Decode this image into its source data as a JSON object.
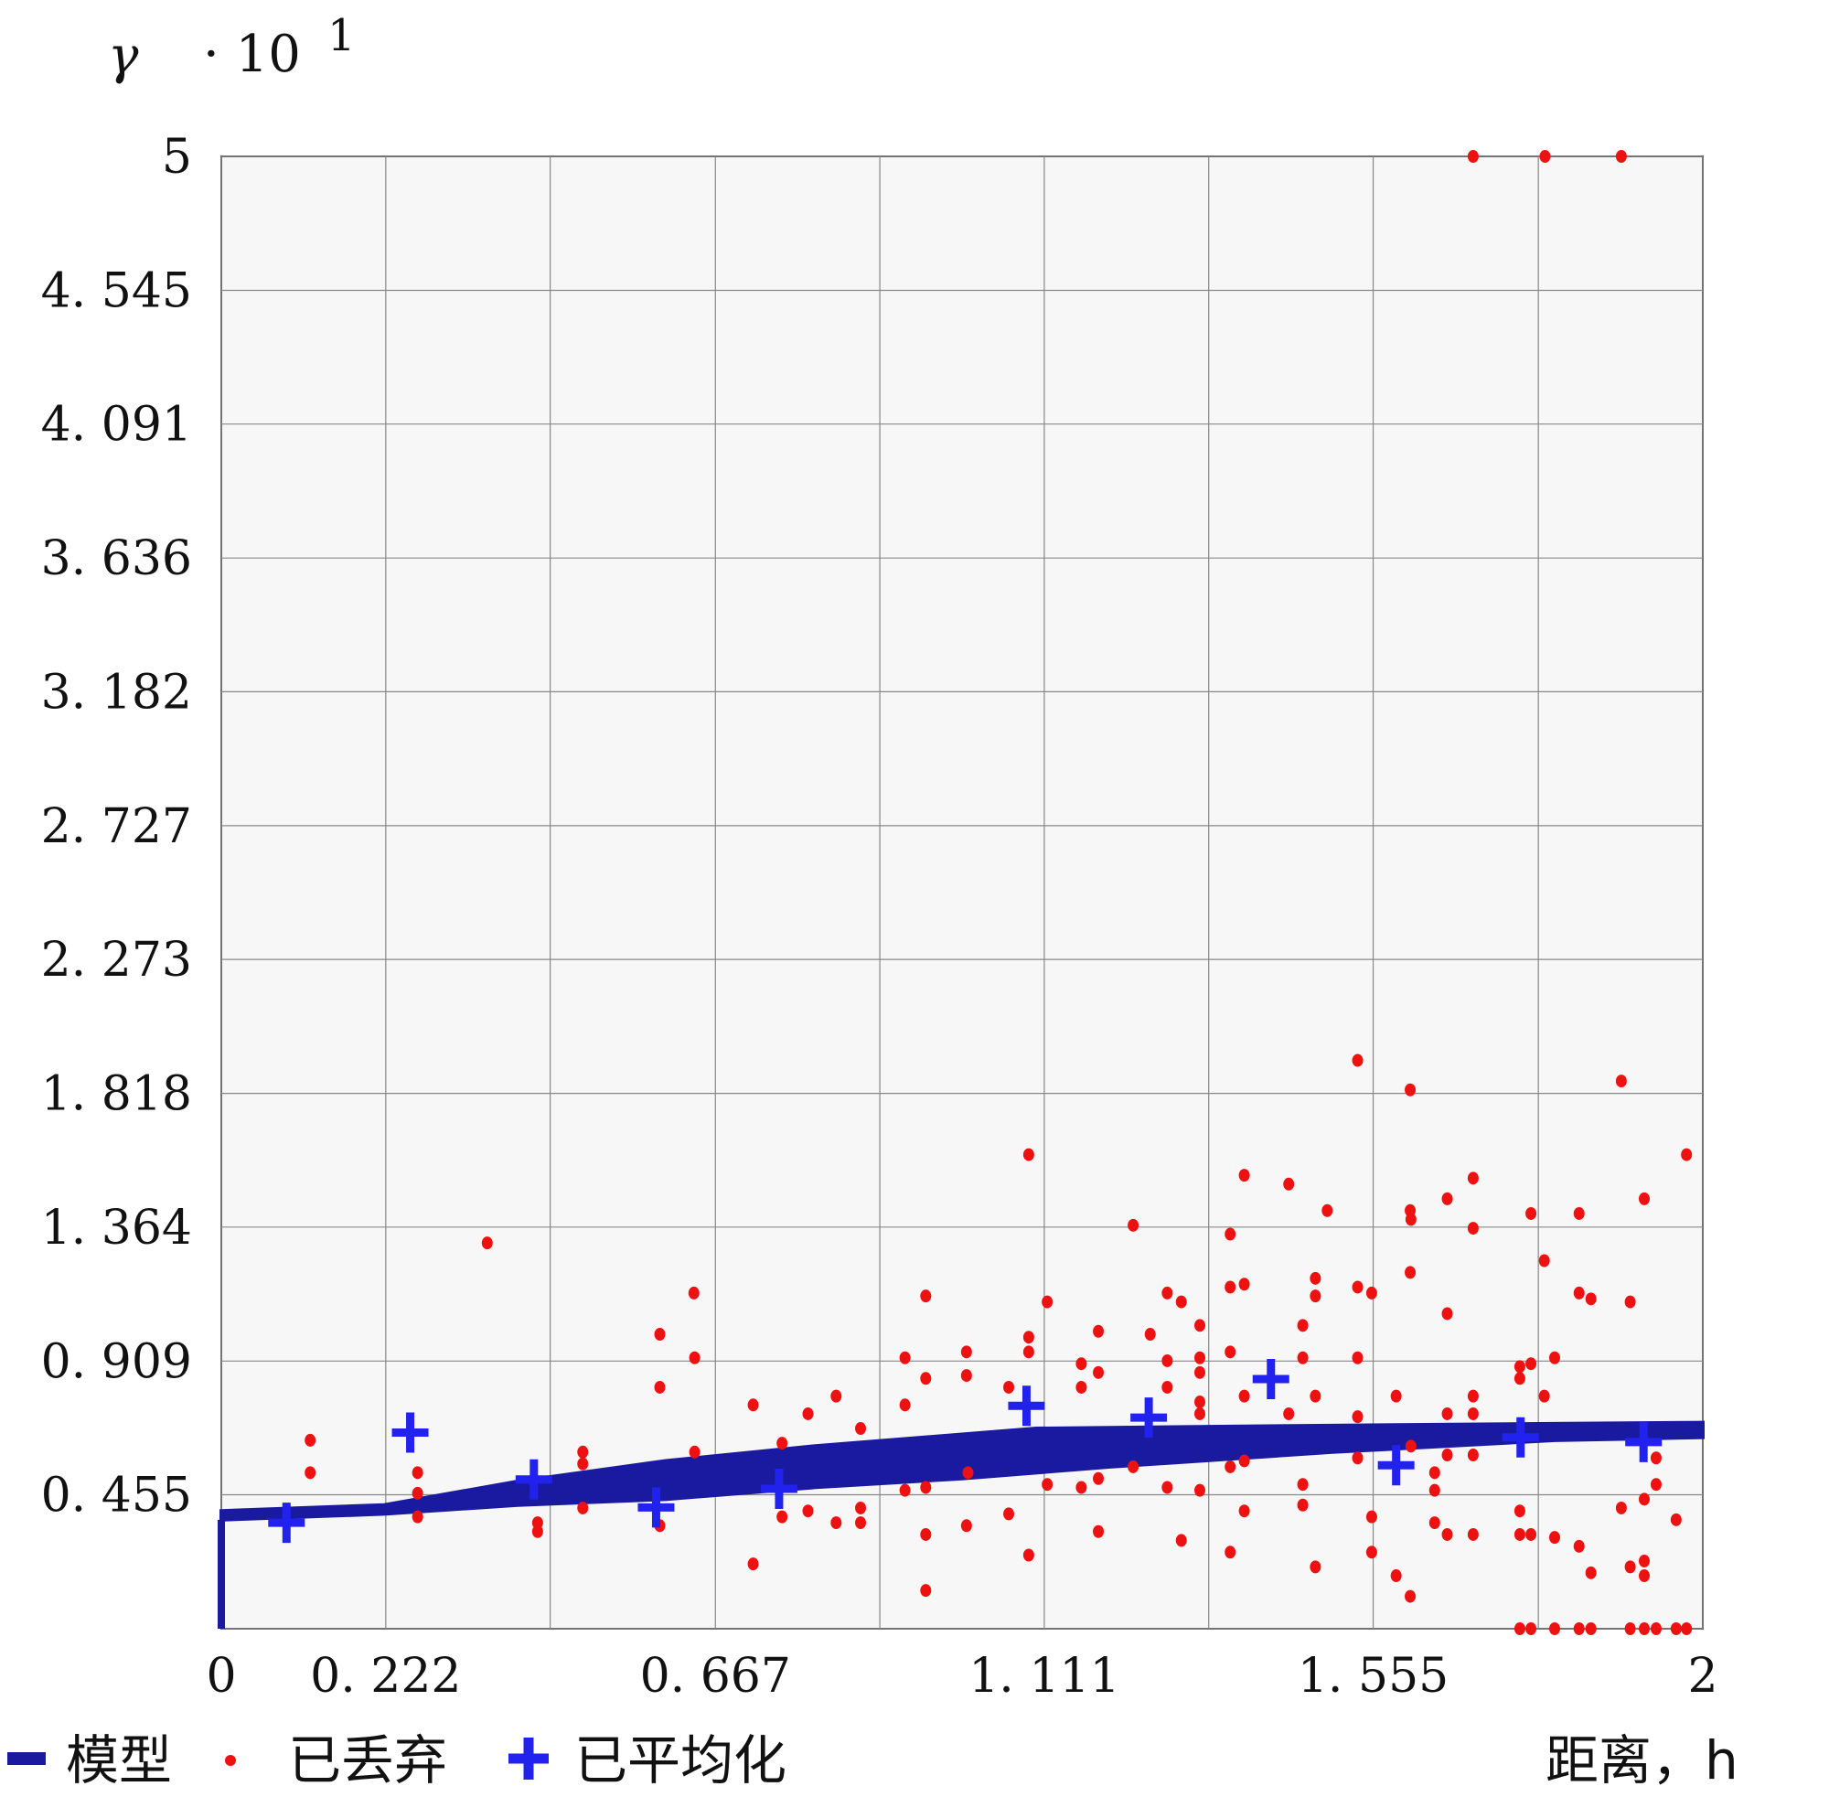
{
  "chart_data": {
    "type": "scatter",
    "title": "",
    "ylabel": "γ",
    "y_multiplier": "· 10",
    "y_multiplier_exp": "1",
    "xlabel": "距离，h",
    "xlim": [
      0,
      2
    ],
    "ylim": [
      0,
      5
    ],
    "grid": true,
    "x_ticks": [
      0,
      0.222,
      0.444,
      0.667,
      0.889,
      1.111,
      1.333,
      1.555,
      1.778,
      2
    ],
    "x_tick_labels": [
      "0",
      "0.222",
      "",
      "0.667",
      "",
      "1.111",
      "",
      "1.555",
      "",
      "2"
    ],
    "y_ticks": [
      0,
      0.455,
      0.909,
      1.364,
      1.818,
      2.273,
      2.727,
      3.182,
      3.636,
      4.091,
      4.545,
      5
    ],
    "y_tick_labels": [
      "",
      "0. 455",
      "0. 909",
      "1. 364",
      "1. 818",
      "2. 273",
      "2. 727",
      "3. 182",
      "3. 636",
      "4. 091",
      "4. 545",
      "5"
    ],
    "x_tick_text": [
      "0",
      "0. 222",
      "0. 667",
      "1. 111",
      "1. 555",
      "2"
    ],
    "legend": {
      "placement": "bottom-left",
      "entries": [
        {
          "label": "模型",
          "marker": "line",
          "color": "#1a1aa0"
        },
        {
          "label": "已丢弃",
          "marker": "dot",
          "color": "#ee1111"
        },
        {
          "label": "已平均化",
          "marker": "plus",
          "color": "#2222ee"
        }
      ]
    },
    "series": [
      {
        "name": "模型",
        "kind": "band",
        "color": "#1a1aa0",
        "upper": [
          [
            0,
            0.4
          ],
          [
            0.22,
            0.42
          ],
          [
            0.4,
            0.5
          ],
          [
            0.6,
            0.57
          ],
          [
            0.8,
            0.62
          ],
          [
            1.0,
            0.66
          ],
          [
            1.1,
            0.68
          ],
          [
            1.5,
            0.69
          ],
          [
            2,
            0.7
          ]
        ],
        "lower": [
          [
            0,
            0.37
          ],
          [
            0.22,
            0.39
          ],
          [
            0.4,
            0.42
          ],
          [
            0.6,
            0.44
          ],
          [
            0.8,
            0.48
          ],
          [
            1.0,
            0.51
          ],
          [
            1.2,
            0.55
          ],
          [
            1.5,
            0.6
          ],
          [
            1.8,
            0.64
          ],
          [
            2,
            0.65
          ]
        ]
      },
      {
        "name": "已丢弃",
        "kind": "dot",
        "color": "#ee1111",
        "points": [
          [
            1.69,
            5.0
          ],
          [
            1.787,
            5.0
          ],
          [
            1.89,
            5.0
          ],
          [
            1.534,
            1.93
          ],
          [
            1.605,
            1.83
          ],
          [
            1.89,
            1.86
          ],
          [
            1.09,
            1.61
          ],
          [
            1.978,
            1.61
          ],
          [
            0.359,
            1.31
          ],
          [
            1.381,
            1.54
          ],
          [
            1.441,
            1.51
          ],
          [
            1.231,
            1.37
          ],
          [
            1.362,
            1.34
          ],
          [
            1.493,
            1.42
          ],
          [
            1.605,
            1.42
          ],
          [
            1.606,
            1.39
          ],
          [
            1.655,
            1.46
          ],
          [
            1.69,
            1.53
          ],
          [
            1.69,
            1.36
          ],
          [
            1.768,
            1.41
          ],
          [
            1.833,
            1.41
          ],
          [
            1.921,
            1.46
          ],
          [
            1.786,
            1.25
          ],
          [
            0.638,
            1.14
          ],
          [
            0.951,
            1.13
          ],
          [
            1.115,
            1.11
          ],
          [
            1.277,
            1.14
          ],
          [
            1.296,
            1.11
          ],
          [
            1.362,
            1.16
          ],
          [
            1.381,
            1.17
          ],
          [
            1.477,
            1.19
          ],
          [
            1.477,
            1.13
          ],
          [
            1.534,
            1.16
          ],
          [
            1.553,
            1.14
          ],
          [
            1.605,
            1.21
          ],
          [
            1.655,
            1.07
          ],
          [
            1.833,
            1.14
          ],
          [
            1.849,
            1.12
          ],
          [
            1.902,
            1.11
          ],
          [
            0.592,
            1.0
          ],
          [
            1.184,
            1.01
          ],
          [
            1.254,
            1.0
          ],
          [
            1.321,
            1.03
          ],
          [
            1.46,
            1.03
          ],
          [
            1.09,
            0.99
          ],
          [
            1.09,
            0.94
          ],
          [
            0.639,
            0.92
          ],
          [
            0.923,
            0.92
          ],
          [
            1.006,
            0.94
          ],
          [
            1.277,
            0.91
          ],
          [
            1.321,
            0.92
          ],
          [
            1.46,
            0.92
          ],
          [
            1.534,
            0.92
          ],
          [
            1.8,
            0.92
          ],
          [
            1.768,
            0.9
          ],
          [
            1.753,
            0.89
          ],
          [
            1.161,
            0.9
          ],
          [
            1.184,
            0.87
          ],
          [
            0.592,
            0.82
          ],
          [
            0.951,
            0.85
          ],
          [
            1.006,
            0.86
          ],
          [
            1.321,
            0.87
          ],
          [
            1.362,
            0.94
          ],
          [
            1.753,
            0.85
          ],
          [
            1.063,
            0.82
          ],
          [
            1.161,
            0.82
          ],
          [
            1.277,
            0.82
          ],
          [
            1.477,
            0.79
          ],
          [
            1.586,
            0.79
          ],
          [
            1.69,
            0.79
          ],
          [
            1.786,
            0.79
          ],
          [
            1.381,
            0.79
          ],
          [
            0.718,
            0.76
          ],
          [
            0.83,
            0.79
          ],
          [
            0.792,
            0.73
          ],
          [
            0.923,
            0.76
          ],
          [
            1.321,
            0.77
          ],
          [
            1.321,
            0.73
          ],
          [
            1.441,
            0.73
          ],
          [
            1.534,
            0.72
          ],
          [
            1.69,
            0.73
          ],
          [
            1.655,
            0.73
          ],
          [
            0.12,
            0.64
          ],
          [
            0.12,
            0.53
          ],
          [
            0.863,
            0.68
          ],
          [
            0.757,
            0.63
          ],
          [
            0.639,
            0.6
          ],
          [
            0.488,
            0.6
          ],
          [
            0.488,
            0.56
          ],
          [
            0.265,
            0.53
          ],
          [
            0.265,
            0.46
          ],
          [
            0.265,
            0.38
          ],
          [
            1.362,
            0.55
          ],
          [
            1.381,
            0.57
          ],
          [
            1.534,
            0.58
          ],
          [
            1.606,
            0.62
          ],
          [
            1.638,
            0.53
          ],
          [
            1.655,
            0.59
          ],
          [
            1.69,
            0.59
          ],
          [
            1.937,
            0.58
          ],
          [
            1.231,
            0.55
          ],
          [
            1.008,
            0.53
          ],
          [
            1.46,
            0.49
          ],
          [
            1.277,
            0.48
          ],
          [
            1.321,
            0.47
          ],
          [
            0.923,
            0.47
          ],
          [
            0.951,
            0.48
          ],
          [
            1.115,
            0.49
          ],
          [
            1.161,
            0.48
          ],
          [
            1.184,
            0.51
          ],
          [
            1.46,
            0.42
          ],
          [
            1.638,
            0.47
          ],
          [
            1.937,
            0.49
          ],
          [
            1.921,
            0.44
          ],
          [
            1.89,
            0.41
          ],
          [
            0.427,
            0.36
          ],
          [
            0.427,
            0.33
          ],
          [
            0.488,
            0.41
          ],
          [
            0.592,
            0.35
          ],
          [
            0.757,
            0.38
          ],
          [
            0.792,
            0.4
          ],
          [
            0.83,
            0.36
          ],
          [
            0.863,
            0.41
          ],
          [
            0.863,
            0.36
          ],
          [
            1.063,
            0.39
          ],
          [
            1.184,
            0.33
          ],
          [
            1.381,
            0.4
          ],
          [
            1.553,
            0.38
          ],
          [
            1.638,
            0.36
          ],
          [
            1.655,
            0.32
          ],
          [
            1.69,
            0.32
          ],
          [
            1.753,
            0.4
          ],
          [
            1.753,
            0.32
          ],
          [
            1.768,
            0.32
          ],
          [
            1.8,
            0.31
          ],
          [
            1.964,
            0.37
          ],
          [
            0.951,
            0.32
          ],
          [
            1.296,
            0.3
          ],
          [
            1.006,
            0.35
          ],
          [
            1.362,
            0.26
          ],
          [
            1.553,
            0.26
          ],
          [
            1.477,
            0.21
          ],
          [
            1.586,
            0.18
          ],
          [
            1.833,
            0.28
          ],
          [
            1.921,
            0.23
          ],
          [
            1.921,
            0.18
          ],
          [
            1.902,
            0.21
          ],
          [
            1.849,
            0.19
          ],
          [
            1.605,
            0.11
          ],
          [
            0.951,
            0.13
          ],
          [
            0.718,
            0.22
          ],
          [
            1.09,
            0.25
          ],
          [
            1.753,
            0
          ],
          [
            1.768,
            0
          ],
          [
            1.8,
            0
          ],
          [
            1.833,
            0
          ],
          [
            1.849,
            0
          ],
          [
            1.902,
            0
          ],
          [
            1.921,
            0
          ],
          [
            1.937,
            0
          ],
          [
            1.964,
            0
          ],
          [
            1.978,
            0
          ]
        ]
      },
      {
        "name": "已平均化",
        "kind": "plus",
        "color": "#2222ee",
        "points": [
          [
            0.088,
            0.36
          ],
          [
            0.255,
            0.666
          ],
          [
            0.422,
            0.507
          ],
          [
            0.587,
            0.412
          ],
          [
            0.753,
            0.475
          ],
          [
            1.087,
            0.757
          ],
          [
            1.252,
            0.717
          ],
          [
            1.417,
            0.848
          ],
          [
            1.586,
            0.555
          ],
          [
            1.754,
            0.65
          ],
          [
            1.92,
            0.634
          ]
        ]
      }
    ]
  }
}
